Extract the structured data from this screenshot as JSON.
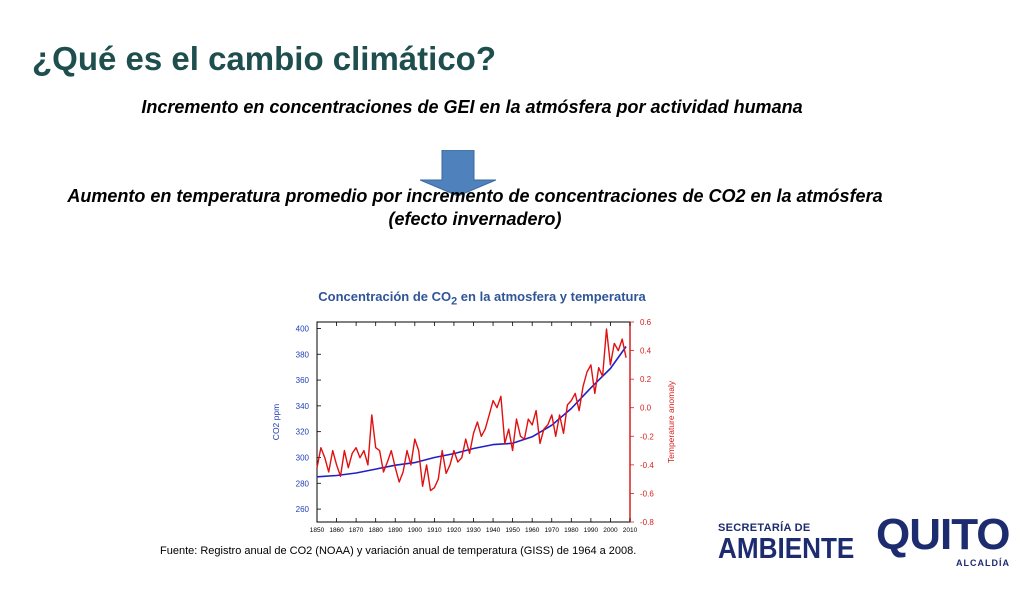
{
  "slide": {
    "title": "¿Qué es el cambio climático?",
    "subtitle": "Incremento en concentraciones de GEI en la atmósfera por actividad humana",
    "statement": "Aumento en temperatura promedio por incremento de concentraciones de CO2 en la atmósfera (efecto invernadero)",
    "chart_title_pre": "Concentración de CO",
    "chart_title_sub": "2",
    "chart_title_post": " en la atmosfera y temperatura",
    "footnote": "Fuente: Registro anual de CO2 (NOAA) y variación anual de temperatura (GISS) de 1964 a 2008.",
    "arrow_color": "#4f81bd"
  },
  "logos": {
    "ambiente_small": "SECRETARÍA DE",
    "ambiente_big": "AMBIENTE",
    "quito_word": "QUITO",
    "quito_sub": "ALCALDÍA"
  },
  "chart_data": {
    "type": "line",
    "title": "Concentración de CO2 en la atmosfera y temperatura",
    "x_ticks": [
      1850,
      1860,
      1870,
      1880,
      1890,
      1900,
      1910,
      1920,
      1930,
      1940,
      1950,
      1960,
      1970,
      1980,
      1990,
      2000,
      2010
    ],
    "xlim": [
      1850,
      2010
    ],
    "y_left": {
      "label": "CO2 ppm",
      "ticks": [
        260,
        280,
        300,
        320,
        340,
        360,
        380,
        400
      ],
      "lim": [
        250,
        405
      ],
      "color": "#1f3fb4"
    },
    "y_right": {
      "label": "Temperature anomaly",
      "ticks": [
        -0.8,
        -0.6,
        -0.4,
        -0.2,
        0.0,
        0.2,
        0.4,
        0.6
      ],
      "lim": [
        -0.8,
        0.6
      ],
      "color": "#d62020"
    },
    "series": [
      {
        "name": "",
        "axis": "left",
        "color": "#2020c8",
        "x": [
          1850,
          1860,
          1870,
          1880,
          1890,
          1900,
          1910,
          1920,
          1930,
          1940,
          1950,
          1960,
          1970,
          1980,
          1990,
          2000,
          2008
        ],
        "y": [
          285,
          286,
          288,
          291,
          294,
          296,
          300,
          303,
          307,
          310,
          311,
          316,
          325,
          338,
          354,
          369,
          386
        ]
      },
      {
        "name": "",
        "axis": "right",
        "color": "#e01010",
        "x": [
          1850,
          1852,
          1854,
          1856,
          1858,
          1860,
          1862,
          1864,
          1866,
          1868,
          1870,
          1872,
          1874,
          1876,
          1878,
          1880,
          1882,
          1884,
          1886,
          1888,
          1890,
          1892,
          1894,
          1896,
          1898,
          1900,
          1902,
          1904,
          1906,
          1908,
          1910,
          1912,
          1914,
          1916,
          1918,
          1920,
          1922,
          1924,
          1926,
          1928,
          1930,
          1932,
          1934,
          1936,
          1938,
          1940,
          1942,
          1944,
          1946,
          1948,
          1950,
          1952,
          1954,
          1956,
          1958,
          1960,
          1962,
          1964,
          1966,
          1968,
          1970,
          1972,
          1974,
          1976,
          1978,
          1980,
          1982,
          1984,
          1986,
          1988,
          1990,
          1992,
          1994,
          1996,
          1998,
          2000,
          2002,
          2004,
          2006,
          2008
        ],
        "y": [
          -0.42,
          -0.28,
          -0.35,
          -0.45,
          -0.3,
          -0.4,
          -0.48,
          -0.3,
          -0.42,
          -0.32,
          -0.28,
          -0.35,
          -0.3,
          -0.4,
          -0.05,
          -0.28,
          -0.3,
          -0.45,
          -0.38,
          -0.3,
          -0.42,
          -0.52,
          -0.45,
          -0.3,
          -0.4,
          -0.22,
          -0.3,
          -0.55,
          -0.4,
          -0.58,
          -0.56,
          -0.5,
          -0.3,
          -0.46,
          -0.4,
          -0.3,
          -0.38,
          -0.35,
          -0.22,
          -0.32,
          -0.18,
          -0.1,
          -0.2,
          -0.15,
          -0.05,
          0.05,
          0.0,
          0.08,
          -0.25,
          -0.15,
          -0.3,
          -0.08,
          -0.2,
          -0.22,
          -0.08,
          -0.12,
          -0.02,
          -0.25,
          -0.15,
          -0.12,
          -0.05,
          -0.2,
          -0.05,
          -0.18,
          0.02,
          0.05,
          0.1,
          -0.02,
          0.15,
          0.25,
          0.3,
          0.1,
          0.28,
          0.22,
          0.55,
          0.3,
          0.45,
          0.4,
          0.48,
          0.35
        ]
      }
    ]
  }
}
